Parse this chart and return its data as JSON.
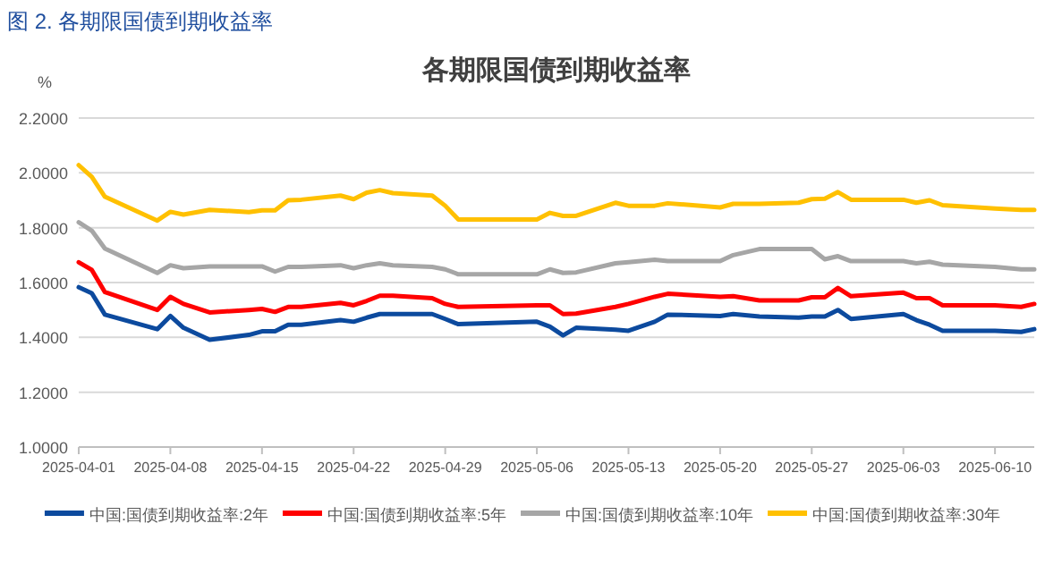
{
  "chart_data": {
    "type": "line",
    "title": "各期限国债到期收益率",
    "annotations": [
      "图 2.  各期限国债到期收益率"
    ],
    "ylabel": "%",
    "x": [
      "2025-04-01",
      "2025-04-02",
      "2025-04-03",
      "2025-04-07",
      "2025-04-08",
      "2025-04-09",
      "2025-04-11",
      "2025-04-14",
      "2025-04-15",
      "2025-04-16",
      "2025-04-17",
      "2025-04-18",
      "2025-04-21",
      "2025-04-22",
      "2025-04-23",
      "2025-04-24",
      "2025-04-25",
      "2025-04-28",
      "2025-04-29",
      "2025-04-30",
      "2025-05-06",
      "2025-05-07",
      "2025-05-08",
      "2025-05-09",
      "2025-05-12",
      "2025-05-13",
      "2025-05-15",
      "2025-05-16",
      "2025-05-20",
      "2025-05-21",
      "2025-05-23",
      "2025-05-26",
      "2025-05-27",
      "2025-05-28",
      "2025-05-29",
      "2025-05-30",
      "2025-06-03",
      "2025-06-04",
      "2025-06-05",
      "2025-06-06",
      "2025-06-10",
      "2025-06-12",
      "2025-06-13"
    ],
    "series": [
      {
        "name": "中国:国债到期收益率:2年",
        "color": "#0c4a9e",
        "values": [
          1.583,
          1.561,
          1.483,
          1.43,
          1.478,
          1.435,
          1.391,
          1.409,
          1.422,
          1.422,
          1.446,
          1.446,
          1.463,
          1.457,
          1.472,
          1.485,
          1.485,
          1.485,
          1.467,
          1.448,
          1.457,
          1.439,
          1.407,
          1.435,
          1.428,
          1.424,
          1.457,
          1.483,
          1.478,
          1.485,
          1.476,
          1.472,
          1.476,
          1.476,
          1.5,
          1.467,
          1.485,
          1.463,
          1.446,
          1.424,
          1.424,
          1.42,
          1.43
        ]
      },
      {
        "name": "中国:国债到期收益率:5年",
        "color": "#ff0000",
        "values": [
          1.674,
          1.646,
          1.565,
          1.5,
          1.548,
          1.522,
          1.491,
          1.5,
          1.504,
          1.493,
          1.511,
          1.511,
          1.526,
          1.517,
          1.533,
          1.552,
          1.552,
          1.543,
          1.522,
          1.511,
          1.517,
          1.517,
          1.485,
          1.487,
          1.511,
          1.522,
          1.548,
          1.559,
          1.548,
          1.55,
          1.535,
          1.535,
          1.546,
          1.546,
          1.58,
          1.55,
          1.563,
          1.543,
          1.543,
          1.517,
          1.517,
          1.511,
          1.522
        ]
      },
      {
        "name": "中国:国债到期收益率:10年",
        "color": "#a6a6a6",
        "values": [
          1.82,
          1.789,
          1.724,
          1.635,
          1.663,
          1.652,
          1.659,
          1.659,
          1.659,
          1.64,
          1.657,
          1.657,
          1.663,
          1.652,
          1.663,
          1.67,
          1.663,
          1.657,
          1.648,
          1.63,
          1.63,
          1.648,
          1.635,
          1.637,
          1.67,
          1.674,
          1.683,
          1.678,
          1.678,
          1.7,
          1.722,
          1.722,
          1.722,
          1.685,
          1.696,
          1.678,
          1.678,
          1.67,
          1.676,
          1.665,
          1.657,
          1.648,
          1.648
        ]
      },
      {
        "name": "中国:国债到期收益率:30年",
        "color": "#ffc000",
        "values": [
          2.028,
          1.985,
          1.913,
          1.826,
          1.858,
          1.848,
          1.865,
          1.857,
          1.863,
          1.863,
          1.9,
          1.902,
          1.917,
          1.904,
          1.928,
          1.937,
          1.926,
          1.917,
          1.88,
          1.83,
          1.83,
          1.854,
          1.843,
          1.843,
          1.891,
          1.88,
          1.88,
          1.889,
          1.874,
          1.887,
          1.887,
          1.891,
          1.904,
          1.906,
          1.93,
          1.902,
          1.902,
          1.891,
          1.9,
          1.882,
          1.87,
          1.865,
          1.865
        ]
      }
    ],
    "xlim": [
      "2025-04-01",
      "2025-06-13"
    ],
    "xticks": [
      "2025-04-01",
      "2025-04-08",
      "2025-04-15",
      "2025-04-22",
      "2025-04-29",
      "2025-05-06",
      "2025-05-13",
      "2025-05-20",
      "2025-05-27",
      "2025-06-03",
      "2025-06-10"
    ],
    "ylim": [
      1.0,
      2.2
    ],
    "yticks": [
      {
        "value": 1.0,
        "label": "1.0000"
      },
      {
        "value": 1.2,
        "label": "1.2000"
      },
      {
        "value": 1.4,
        "label": "1.4000"
      },
      {
        "value": 1.6,
        "label": "1.6000"
      },
      {
        "value": 1.8,
        "label": "1.8000"
      },
      {
        "value": 2.0,
        "label": "2.0000"
      },
      {
        "value": 2.2,
        "label": "2.2000"
      }
    ],
    "grid": "y",
    "legend": "bottom",
    "line_style": "solid",
    "marker": "none"
  }
}
